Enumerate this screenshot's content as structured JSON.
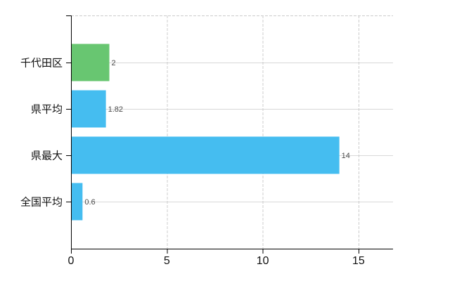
{
  "chart_data": {
    "type": "bar",
    "orientation": "horizontal",
    "title": "",
    "xlabel": "",
    "ylabel": "",
    "categories": [
      "千代田区",
      "県平均",
      "県最大",
      "全国平均"
    ],
    "values": [
      2,
      1.82,
      14,
      0.6
    ],
    "value_labels": [
      "2",
      "1.82",
      "14",
      "0.6"
    ],
    "bar_colors": [
      "#68c671",
      "#45bdf0",
      "#45bdf0",
      "#45bdf0"
    ],
    "x_ticks": [
      0,
      5,
      10,
      15
    ],
    "xlim": [
      0,
      16.8
    ],
    "grid": true,
    "grid_style": {
      "horizontal": "solid",
      "vertical": "dashed",
      "top_border": "dashed"
    },
    "legend": false
  },
  "colors": {
    "background": "#ffffff",
    "bar_green": "#68c671",
    "bar_blue": "#45bdf0",
    "axis_line": "#000000",
    "grid_solid": "#d8d8d8",
    "grid_dashed": "#cccccc",
    "category_label": "#111111",
    "tick_label": "#111111",
    "value_label": "#4a4a4a"
  }
}
